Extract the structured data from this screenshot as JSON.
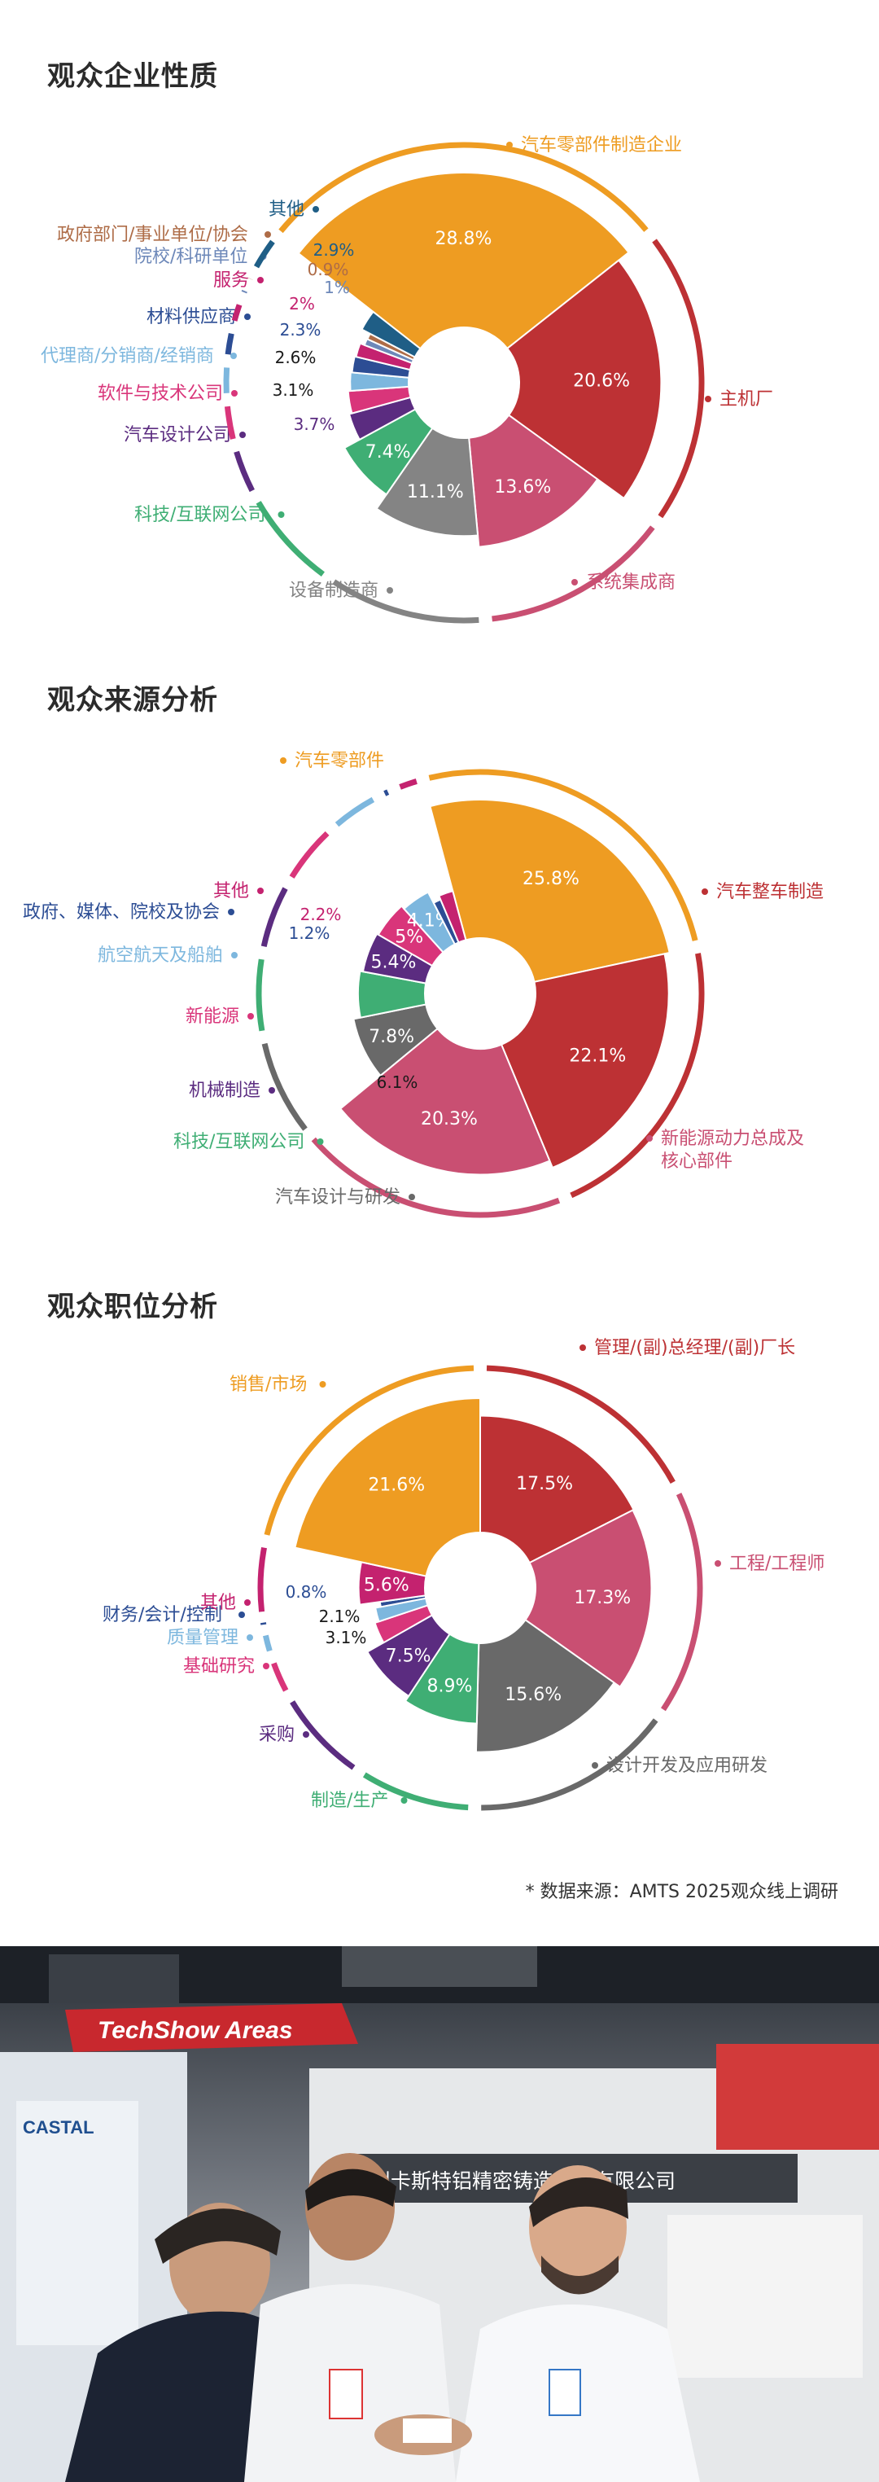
{
  "charts": [
    {
      "id": "c1",
      "title": "观众企业性质",
      "chart_data": {
        "type": "pie",
        "title": "观众企业性质",
        "unit": "%",
        "slices": [
          {
            "label": "汽车零部件制造企业",
            "value": 28.8,
            "color": "#EE9C22"
          },
          {
            "label": "主机厂",
            "value": 20.6,
            "color": "#BD3134"
          },
          {
            "label": "系统集成商",
            "value": 13.6,
            "color": "#C94F72"
          },
          {
            "label": "设备制造商",
            "value": 11.1,
            "color": "#848484"
          },
          {
            "label": "科技/互联网公司",
            "value": 7.4,
            "color": "#3FAE74"
          },
          {
            "label": "汽车设计公司",
            "value": 3.7,
            "color": "#5B2C80"
          },
          {
            "label": "软件与技术公司",
            "value": 3.1,
            "color": "#D9357A"
          },
          {
            "label": "代理商/分销商/经销商",
            "value": 2.6,
            "color": "#7DB7DE"
          },
          {
            "label": "材料供应商",
            "value": 2.3,
            "color": "#2C4D94"
          },
          {
            "label": "服务",
            "value": 2.0,
            "color": "#C4226F"
          },
          {
            "label": "院校/科研单位",
            "value": 1.0,
            "color": "#6D88B9"
          },
          {
            "label": "政府部门/事业单位/协会",
            "value": 0.9,
            "color": "#AE6C47"
          },
          {
            "label": "其他",
            "value": 2.9,
            "color": "#1F5E86"
          }
        ]
      }
    },
    {
      "id": "c2",
      "title": "观众来源分析",
      "chart_data": {
        "type": "pie",
        "title": "观众来源分析",
        "unit": "%",
        "slices": [
          {
            "label": "汽车零部件",
            "value": 25.8,
            "color": "#EE9C22"
          },
          {
            "label": "汽车整车制造",
            "value": 22.1,
            "color": "#BD3134"
          },
          {
            "label": "新能源动力总成及核心部件",
            "value": 20.3,
            "color": "#C94F72"
          },
          {
            "label": "汽车设计与研发",
            "value": 7.8,
            "color": "#696969"
          },
          {
            "label": "科技/互联网公司",
            "value": 6.1,
            "color": "#3FAE74"
          },
          {
            "label": "机械制造",
            "value": 5.4,
            "color": "#5B2C80"
          },
          {
            "label": "新能源",
            "value": 5.0,
            "color": "#D9357A"
          },
          {
            "label": "航空航天及船舶",
            "value": 4.1,
            "color": "#7DB7DE"
          },
          {
            "label": "政府、媒体、院校及协会",
            "value": 1.2,
            "color": "#2C4D94"
          },
          {
            "label": "其他",
            "value": 2.2,
            "color": "#C4226F"
          }
        ]
      }
    },
    {
      "id": "c3",
      "title": "观众职位分析",
      "chart_data": {
        "type": "pie",
        "title": "观众职位分析",
        "unit": "%",
        "slices": [
          {
            "label": "管理/(副)总经理/(副)厂长",
            "value": 17.5,
            "color": "#BD3134"
          },
          {
            "label": "工程/工程师",
            "value": 17.3,
            "color": "#C94F72"
          },
          {
            "label": "设计开发及应用研发",
            "value": 15.6,
            "color": "#696969"
          },
          {
            "label": "制造/生产",
            "value": 8.9,
            "color": "#3FAE74"
          },
          {
            "label": "采购",
            "value": 7.5,
            "color": "#5B2C80"
          },
          {
            "label": "基础研究",
            "value": 3.1,
            "color": "#D9357A"
          },
          {
            "label": "质量管理",
            "value": 2.1,
            "color": "#7DB7DE"
          },
          {
            "label": "财务/会计/控制",
            "value": 0.8,
            "color": "#2C4D94"
          },
          {
            "label": "其他",
            "value": 5.6,
            "color": "#C4226F"
          },
          {
            "label": "销售/市场",
            "value": 21.6,
            "color": "#EE9C22"
          }
        ]
      }
    }
  ],
  "footer": {
    "source_note": "* 数据来源：AMTS 2025观众线上调研"
  },
  "photo": {
    "banner_text": "TechShow Areas",
    "company_sign": "常州卡斯特铝精密铸造科技有限公司",
    "booth_logo": "CASTAL"
  }
}
